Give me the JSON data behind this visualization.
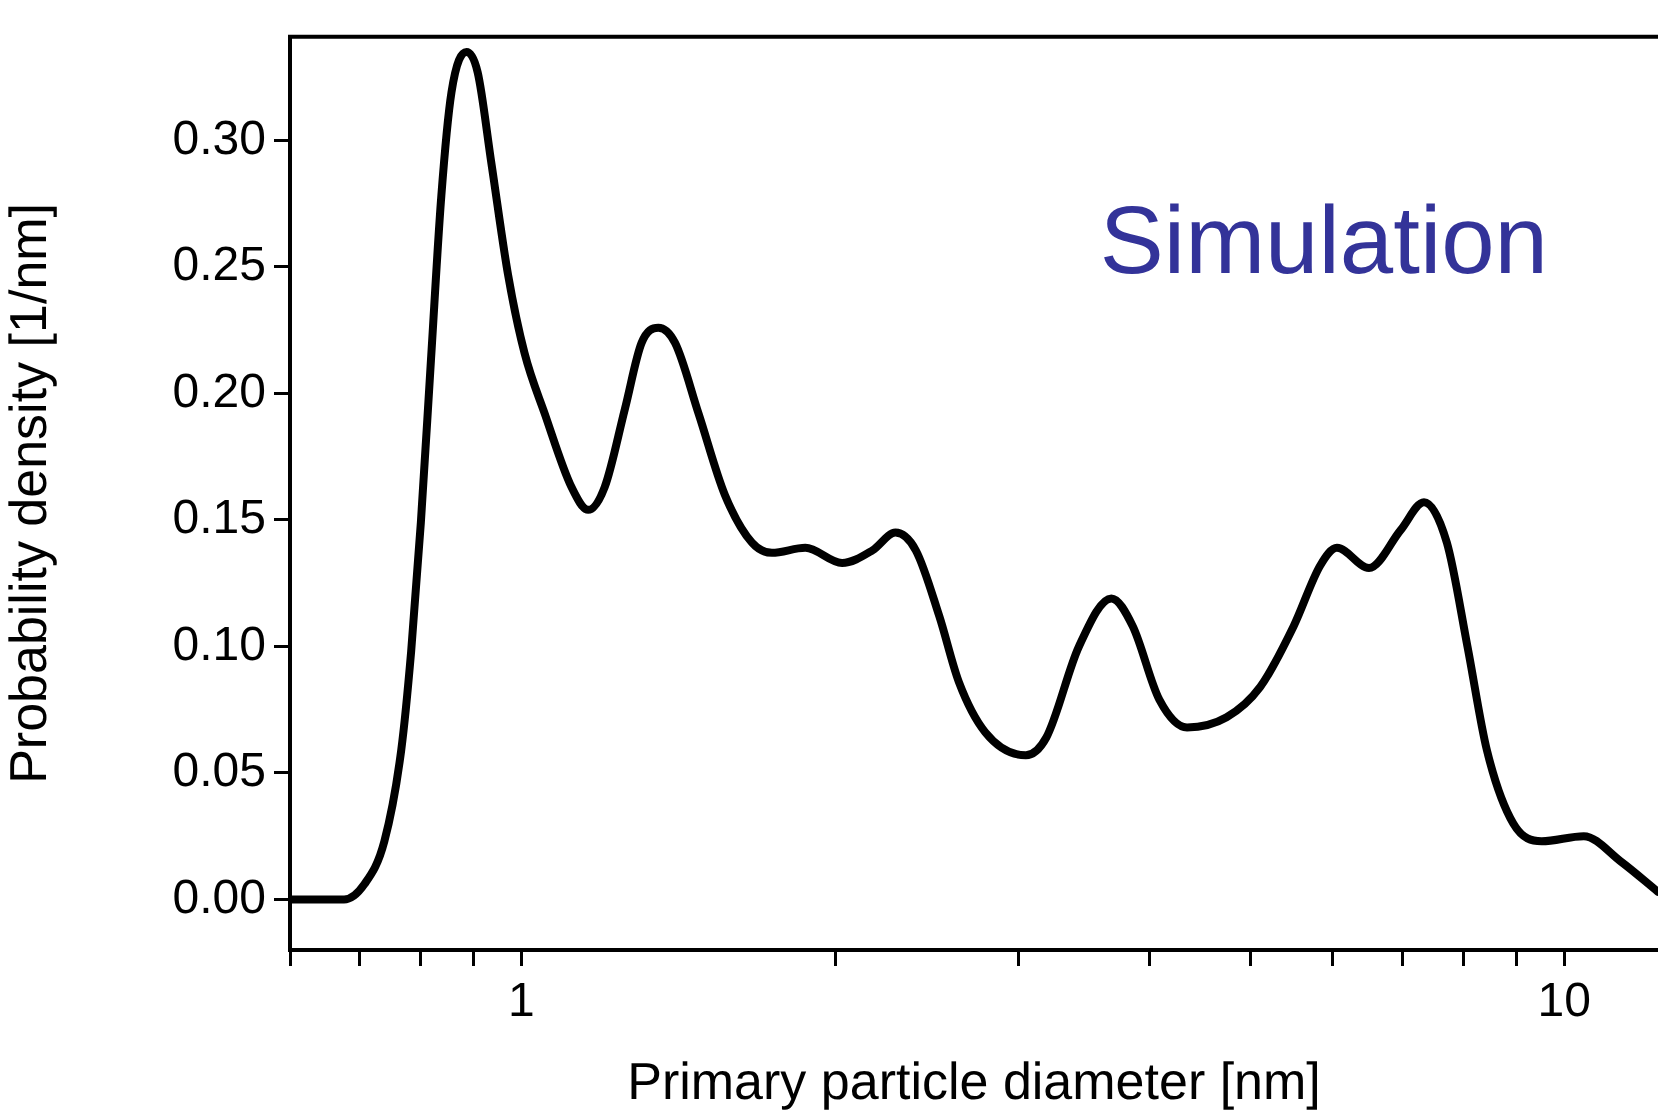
{
  "chart_data": {
    "type": "line",
    "xlabel": "Primary particle diameter [nm]",
    "ylabel": "Probability density [1/nm]",
    "annotations": [
      "Simulation"
    ],
    "log": "x",
    "xlim": [
      0.6,
      12.3
    ],
    "xticks": [
      {
        "value": 0.6,
        "label": null
      },
      {
        "value": 0.7,
        "label": null
      },
      {
        "value": 0.8,
        "label": null
      },
      {
        "value": 0.9,
        "label": null
      },
      1,
      {
        "value": 2,
        "label": null
      },
      {
        "value": 3,
        "label": null
      },
      {
        "value": 4,
        "label": null
      },
      {
        "value": 5,
        "label": null
      },
      {
        "value": 6,
        "label": null
      },
      {
        "value": 7,
        "label": null
      },
      {
        "value": 8,
        "label": null
      },
      {
        "value": 9,
        "label": null
      },
      10
    ],
    "ylim": [
      -0.02,
      0.341
    ],
    "yticks": [
      {
        "value": 0,
        "label": "0.00"
      },
      {
        "value": 0.05,
        "label": "0.05"
      },
      {
        "value": 0.1,
        "label": "0.10"
      },
      {
        "value": 0.15,
        "label": "0.15"
      },
      {
        "value": 0.2,
        "label": "0.20"
      },
      {
        "value": 0.25,
        "label": "0.25"
      },
      {
        "value": 0.3,
        "label": "0.30"
      }
    ],
    "grid": false,
    "legend": false,
    "marker": "none",
    "line_style": "solid",
    "series": [
      {
        "color": "#000000",
        "x": [
          0.6,
          0.676,
          0.707,
          0.739,
          0.767,
          0.784,
          0.801,
          0.819,
          0.838,
          0.857,
          0.886,
          0.908,
          0.936,
          0.971,
          1.007,
          1.053,
          1.117,
          1.159,
          1.202,
          1.257,
          1.304,
          1.353,
          1.404,
          1.479,
          1.567,
          1.664,
          1.739,
          1.872,
          2.03,
          2.171,
          2.284,
          2.389,
          2.516,
          2.627,
          2.786,
          3.046,
          3.187,
          3.425,
          3.679,
          3.857,
          4.09,
          4.348,
          4.745,
          5.111,
          5.502,
          5.835,
          6.054,
          6.498,
          6.968,
          7.337,
          7.717,
          8.076,
          8.43,
          8.936,
          9.514,
          10.44,
          11.33,
          12.3
        ],
        "values": [
          0,
          0,
          0.006,
          0.023,
          0.059,
          0.098,
          0.149,
          0.213,
          0.278,
          0.319,
          0.335,
          0.327,
          0.291,
          0.247,
          0.216,
          0.192,
          0.163,
          0.154,
          0.163,
          0.194,
          0.22,
          0.226,
          0.22,
          0.192,
          0.16,
          0.141,
          0.137,
          0.139,
          0.133,
          0.138,
          0.145,
          0.138,
          0.112,
          0.086,
          0.066,
          0.057,
          0.064,
          0.1,
          0.119,
          0.108,
          0.079,
          0.068,
          0.072,
          0.084,
          0.108,
          0.132,
          0.139,
          0.131,
          0.146,
          0.157,
          0.141,
          0.1,
          0.059,
          0.03,
          0.023,
          0.025,
          0.015,
          0.003
        ]
      }
    ]
  }
}
